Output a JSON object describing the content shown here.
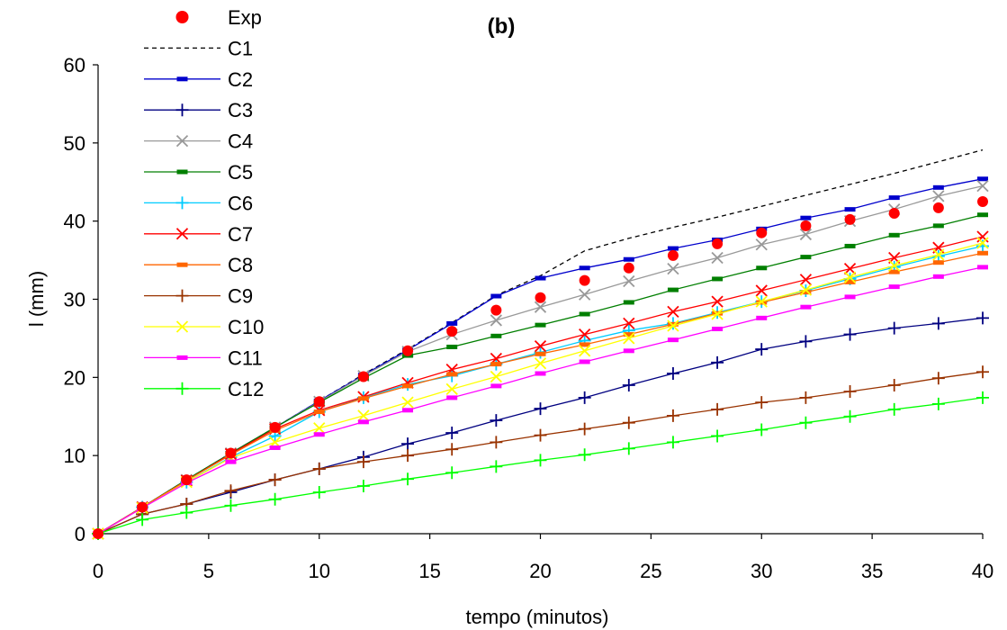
{
  "chart_data": {
    "type": "line",
    "title": "(b)",
    "xlabel": "tempo (minutos)",
    "ylabel": "l (mm)",
    "xlim": [
      0,
      40
    ],
    "ylim": [
      0,
      60
    ],
    "xticks": [
      "0",
      "5",
      "10",
      "15",
      "20",
      "25",
      "30",
      "35",
      "40"
    ],
    "yticks": [
      "0",
      "10",
      "20",
      "30",
      "40",
      "50",
      "60"
    ],
    "grid": false,
    "legend_position": "top-left",
    "x": [
      0,
      2,
      4,
      6,
      8,
      10,
      12,
      14,
      16,
      18,
      20,
      22,
      24,
      26,
      28,
      30,
      32,
      34,
      36,
      38,
      40
    ],
    "series": [
      {
        "name": "Exp",
        "color": "#ff0000",
        "marker": "circle",
        "line": "none",
        "values": [
          0,
          3.4,
          6.9,
          10.3,
          13.6,
          16.9,
          20.1,
          23.4,
          25.9,
          28.6,
          30.2,
          32.4,
          34.0,
          35.6,
          37.1,
          38.5,
          39.4,
          40.2,
          41.0,
          41.7,
          42.5
        ]
      },
      {
        "name": "C1",
        "color": "#000000",
        "marker": "none",
        "line": "dashed",
        "values": [
          0,
          3.4,
          6.9,
          10.3,
          13.6,
          17.0,
          20.4,
          23.6,
          27.0,
          30.5,
          33.0,
          36.2,
          37.8,
          39.2,
          40.5,
          41.9,
          43.3,
          44.7,
          46.1,
          47.6,
          49.1
        ]
      },
      {
        "name": "C2",
        "color": "#0000cc",
        "marker": "dash",
        "line": "solid",
        "values": [
          0,
          3.4,
          6.9,
          10.3,
          13.6,
          17.0,
          20.3,
          23.5,
          26.9,
          30.4,
          32.7,
          34.0,
          35.1,
          36.5,
          37.6,
          39.0,
          40.4,
          41.5,
          43.0,
          44.3,
          45.4
        ]
      },
      {
        "name": "C3",
        "color": "#000080",
        "marker": "plus",
        "line": "solid",
        "values": [
          0,
          2.5,
          3.8,
          5.3,
          6.9,
          8.3,
          9.8,
          11.5,
          12.9,
          14.5,
          16.0,
          17.4,
          19.0,
          20.5,
          21.9,
          23.6,
          24.6,
          25.5,
          26.3,
          26.9,
          27.6
        ]
      },
      {
        "name": "C4",
        "color": "#999999",
        "marker": "x",
        "line": "solid",
        "values": [
          0,
          3.4,
          6.9,
          10.3,
          13.6,
          16.9,
          20.2,
          23.3,
          25.5,
          27.3,
          29.0,
          30.6,
          32.3,
          33.9,
          35.3,
          37.0,
          38.3,
          40.0,
          41.5,
          43.2,
          44.5
        ]
      },
      {
        "name": "C5",
        "color": "#007f00",
        "marker": "dash",
        "line": "solid",
        "values": [
          0,
          3.4,
          6.9,
          10.3,
          13.6,
          16.8,
          19.9,
          22.8,
          23.9,
          25.3,
          26.7,
          28.1,
          29.6,
          31.2,
          32.6,
          34.0,
          35.4,
          36.8,
          38.2,
          39.4,
          40.8
        ]
      },
      {
        "name": "C6",
        "color": "#00ccff",
        "marker": "plus",
        "line": "solid",
        "values": [
          0,
          3.4,
          6.6,
          9.8,
          12.5,
          15.6,
          17.4,
          19.1,
          20.2,
          21.7,
          23.2,
          24.7,
          26.0,
          26.9,
          28.3,
          29.7,
          31.1,
          32.6,
          34.1,
          35.5,
          36.8
        ]
      },
      {
        "name": "C7",
        "color": "#ff0000",
        "marker": "x",
        "line": "solid",
        "values": [
          0,
          3.4,
          6.8,
          10.2,
          13.4,
          15.8,
          17.5,
          19.3,
          21.0,
          22.4,
          24.0,
          25.5,
          26.9,
          28.4,
          29.7,
          31.1,
          32.5,
          33.9,
          35.3,
          36.6,
          38.0
        ]
      },
      {
        "name": "C8",
        "color": "#ff6600",
        "marker": "dash",
        "line": "solid",
        "values": [
          0,
          3.4,
          6.8,
          10.1,
          13.2,
          15.6,
          17.3,
          18.9,
          20.4,
          21.7,
          23.0,
          24.2,
          25.5,
          26.8,
          28.2,
          29.6,
          30.9,
          32.2,
          33.5,
          34.7,
          35.9
        ]
      },
      {
        "name": "C9",
        "color": "#993300",
        "marker": "plus",
        "line": "solid",
        "values": [
          0,
          2.5,
          3.8,
          5.5,
          6.9,
          8.3,
          9.2,
          10.0,
          10.8,
          11.7,
          12.6,
          13.4,
          14.2,
          15.1,
          15.9,
          16.8,
          17.4,
          18.2,
          19.0,
          19.9,
          20.7
        ]
      },
      {
        "name": "C10",
        "color": "#ffff00",
        "marker": "x",
        "line": "solid",
        "values": [
          0,
          3.3,
          6.6,
          9.7,
          11.7,
          13.5,
          15.1,
          16.8,
          18.5,
          20.1,
          21.8,
          23.4,
          25.0,
          26.6,
          28.1,
          29.7,
          31.2,
          32.8,
          34.3,
          35.7,
          37.2
        ]
      },
      {
        "name": "C11",
        "color": "#ff00ff",
        "marker": "dash",
        "line": "solid",
        "values": [
          0,
          3.3,
          6.5,
          9.2,
          11.0,
          12.7,
          14.3,
          15.8,
          17.4,
          18.9,
          20.5,
          22.0,
          23.4,
          24.8,
          26.2,
          27.6,
          29.0,
          30.3,
          31.6,
          32.9,
          34.1
        ]
      },
      {
        "name": "C12",
        "color": "#00ff00",
        "marker": "plus",
        "line": "solid",
        "values": [
          0,
          1.8,
          2.7,
          3.6,
          4.4,
          5.3,
          6.1,
          7.0,
          7.8,
          8.6,
          9.4,
          10.1,
          10.9,
          11.7,
          12.5,
          13.3,
          14.2,
          15.0,
          15.9,
          16.6,
          17.4
        ]
      }
    ]
  }
}
